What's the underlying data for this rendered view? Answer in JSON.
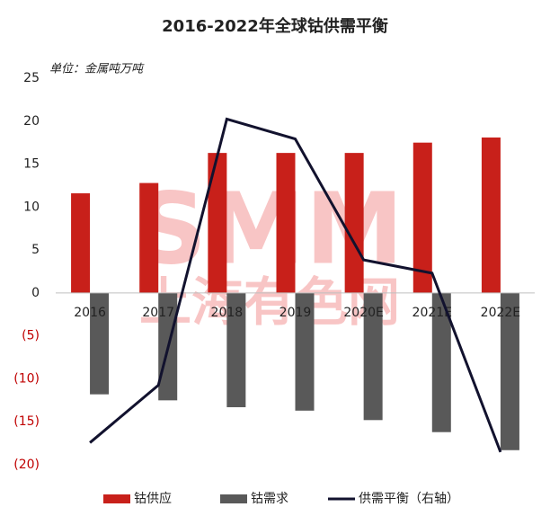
{
  "chart_data": {
    "type": "bar",
    "title": "2016-2022年全球钴供需平衡",
    "subtitle": "单位：金属吨万吨",
    "watermark": [
      "SMM",
      "上海有色网"
    ],
    "categories": [
      "2016",
      "2017",
      "2018",
      "2019",
      "2020E",
      "2021E",
      "2022E"
    ],
    "series": [
      {
        "name": "钴供应",
        "color": "#c8201a",
        "values": [
          11.6,
          12.8,
          16.3,
          16.3,
          16.3,
          17.5,
          18.1
        ]
      },
      {
        "name": "钴需求",
        "color": "#595959",
        "values": [
          -11.8,
          -12.5,
          -13.3,
          -13.7,
          -14.8,
          -16.2,
          -18.3
        ]
      },
      {
        "name": "供需平衡（右轴）",
        "color": "#12122e",
        "type": "line",
        "axis": "y2",
        "values": [
          -2.6,
          -1.56,
          3.26,
          2.9,
          0.71,
          0.47,
          -2.77
        ]
      }
    ],
    "ylim": [
      -20,
      25
    ],
    "yticks": [
      25,
      20,
      15,
      10,
      5,
      0,
      {
        "value": -5,
        "label": "(5)"
      },
      {
        "value": -10,
        "label": "(10)"
      },
      {
        "value": -15,
        "label": "(15)"
      },
      {
        "value": -20,
        "label": "(20)"
      }
    ],
    "negative_tick_color": "#c00000",
    "y2lim": [
      -3,
      4
    ],
    "grid": false,
    "legend": "bottom"
  }
}
